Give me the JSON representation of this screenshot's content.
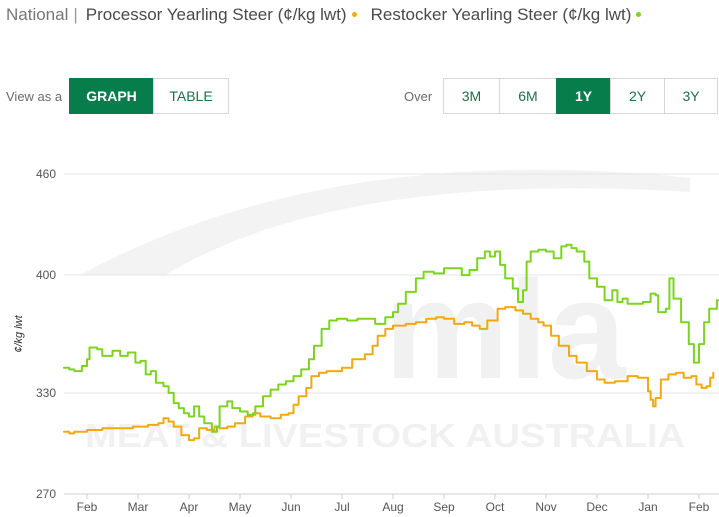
{
  "header": {
    "location": "National",
    "separator": "|",
    "series1_title": "Processor Yearling Steer (¢/kg lwt)",
    "series2_title": "Restocker Yearling Steer (¢/kg lwt)"
  },
  "view_as": {
    "label": "View as a",
    "options": [
      "GRAPH",
      "TABLE"
    ],
    "selected": "GRAPH"
  },
  "over": {
    "label": "Over",
    "options": [
      "3M",
      "6M",
      "1Y",
      "2Y",
      "3Y"
    ],
    "selected": "1Y"
  },
  "watermark": {
    "logo_text": "mla",
    "tagline": "MEAT & LIVESTOCK AUSTRALIA"
  },
  "chart_data": {
    "type": "line",
    "title": "",
    "xlabel": "",
    "ylabel": "¢/kg lwt",
    "ylim": [
      270,
      460
    ],
    "yticks": [
      270,
      330,
      400,
      460
    ],
    "xticks": [
      "Feb",
      "Mar",
      "Apr",
      "May",
      "Jun",
      "Jul",
      "Aug",
      "Sep",
      "Oct",
      "Nov",
      "Dec",
      "Jan",
      "Feb"
    ],
    "grid": true,
    "legend": "header",
    "series": [
      {
        "name": "Processor Yearling Steer (¢/kg lwt)",
        "color": "#f0a90f",
        "points": [
          [
            -0.45,
            307
          ],
          [
            -0.35,
            306
          ],
          [
            -0.25,
            307
          ],
          [
            0.0,
            308
          ],
          [
            0.3,
            309
          ],
          [
            0.6,
            309
          ],
          [
            0.9,
            310
          ],
          [
            1.1,
            310
          ],
          [
            1.2,
            311
          ],
          [
            1.4,
            312
          ],
          [
            1.5,
            315
          ],
          [
            1.6,
            313
          ],
          [
            1.7,
            310
          ],
          [
            1.85,
            305
          ],
          [
            2.0,
            302
          ],
          [
            2.1,
            303
          ],
          [
            2.2,
            309
          ],
          [
            2.35,
            308
          ],
          [
            2.5,
            310
          ],
          [
            2.6,
            309
          ],
          [
            2.75,
            310
          ],
          [
            2.9,
            312
          ],
          [
            3.1,
            316
          ],
          [
            3.25,
            318
          ],
          [
            3.4,
            316
          ],
          [
            3.6,
            315
          ],
          [
            3.8,
            317
          ],
          [
            3.95,
            318
          ],
          [
            4.05,
            323
          ],
          [
            4.15,
            328
          ],
          [
            4.3,
            333
          ],
          [
            4.4,
            340
          ],
          [
            4.55,
            342
          ],
          [
            4.7,
            343
          ],
          [
            4.85,
            343
          ],
          [
            5.0,
            345
          ],
          [
            5.2,
            350
          ],
          [
            5.45,
            353
          ],
          [
            5.6,
            358
          ],
          [
            5.7,
            364
          ],
          [
            5.85,
            368
          ],
          [
            6.0,
            370
          ],
          [
            6.25,
            371
          ],
          [
            6.45,
            372
          ],
          [
            6.65,
            374
          ],
          [
            6.85,
            375
          ],
          [
            7.0,
            374
          ],
          [
            7.2,
            371
          ],
          [
            7.4,
            372
          ],
          [
            7.55,
            370
          ],
          [
            7.7,
            368
          ],
          [
            7.85,
            373
          ],
          [
            8.05,
            380
          ],
          [
            8.2,
            381
          ],
          [
            8.4,
            379
          ],
          [
            8.55,
            377
          ],
          [
            8.7,
            374
          ],
          [
            8.85,
            372
          ],
          [
            8.95,
            370
          ],
          [
            9.1,
            364
          ],
          [
            9.25,
            358
          ],
          [
            9.45,
            352
          ],
          [
            9.6,
            348
          ],
          [
            9.8,
            343
          ],
          [
            10.0,
            338
          ],
          [
            10.15,
            336
          ],
          [
            10.35,
            337
          ],
          [
            10.6,
            340
          ],
          [
            10.8,
            339
          ],
          [
            11.0,
            331
          ],
          [
            11.05,
            326
          ],
          [
            11.1,
            322
          ],
          [
            11.15,
            327
          ],
          [
            11.25,
            338
          ],
          [
            11.4,
            341
          ],
          [
            11.55,
            342
          ],
          [
            11.7,
            339
          ],
          [
            11.85,
            340
          ],
          [
            11.95,
            335
          ],
          [
            12.05,
            333
          ],
          [
            12.15,
            334
          ],
          [
            12.22,
            339
          ],
          [
            12.28,
            342
          ]
        ]
      },
      {
        "name": "Restocker Yearling Steer (¢/kg lwt)",
        "color": "#7ed321",
        "points": [
          [
            -0.45,
            345
          ],
          [
            -0.35,
            344
          ],
          [
            -0.25,
            343
          ],
          [
            -0.1,
            346
          ],
          [
            0.0,
            350
          ],
          [
            0.05,
            357
          ],
          [
            0.2,
            356
          ],
          [
            0.3,
            352
          ],
          [
            0.5,
            355
          ],
          [
            0.65,
            352
          ],
          [
            0.8,
            354
          ],
          [
            0.95,
            348
          ],
          [
            1.05,
            349
          ],
          [
            1.15,
            341
          ],
          [
            1.25,
            343
          ],
          [
            1.35,
            336
          ],
          [
            1.5,
            334
          ],
          [
            1.6,
            330
          ],
          [
            1.7,
            324
          ],
          [
            1.8,
            321
          ],
          [
            1.9,
            318
          ],
          [
            2.0,
            316
          ],
          [
            2.1,
            322
          ],
          [
            2.2,
            316
          ],
          [
            2.3,
            312
          ],
          [
            2.45,
            307
          ],
          [
            2.55,
            310
          ],
          [
            2.6,
            322
          ],
          [
            2.75,
            325
          ],
          [
            2.85,
            321
          ],
          [
            3.0,
            319
          ],
          [
            3.15,
            317
          ],
          [
            3.3,
            322
          ],
          [
            3.45,
            328
          ],
          [
            3.6,
            332
          ],
          [
            3.75,
            335
          ],
          [
            3.9,
            337
          ],
          [
            4.05,
            340
          ],
          [
            4.2,
            344
          ],
          [
            4.35,
            350
          ],
          [
            4.45,
            358
          ],
          [
            4.6,
            368
          ],
          [
            4.75,
            373
          ],
          [
            4.9,
            374
          ],
          [
            5.1,
            373
          ],
          [
            5.3,
            374
          ],
          [
            5.5,
            374
          ],
          [
            5.65,
            371
          ],
          [
            5.85,
            375
          ],
          [
            6.0,
            378
          ],
          [
            6.1,
            383
          ],
          [
            6.25,
            390
          ],
          [
            6.45,
            398
          ],
          [
            6.6,
            402
          ],
          [
            6.8,
            401
          ],
          [
            7.0,
            404
          ],
          [
            7.2,
            404
          ],
          [
            7.35,
            400
          ],
          [
            7.5,
            403
          ],
          [
            7.65,
            410
          ],
          [
            7.8,
            414
          ],
          [
            7.9,
            411
          ],
          [
            8.0,
            414
          ],
          [
            8.1,
            406
          ],
          [
            8.2,
            398
          ],
          [
            8.35,
            392
          ],
          [
            8.45,
            384
          ],
          [
            8.55,
            391
          ],
          [
            8.62,
            408
          ],
          [
            8.7,
            414
          ],
          [
            8.85,
            415
          ],
          [
            9.0,
            414
          ],
          [
            9.15,
            410
          ],
          [
            9.3,
            417
          ],
          [
            9.4,
            418
          ],
          [
            9.5,
            416
          ],
          [
            9.6,
            414
          ],
          [
            9.75,
            408
          ],
          [
            9.85,
            398
          ],
          [
            10.0,
            393
          ],
          [
            10.15,
            385
          ],
          [
            10.3,
            391
          ],
          [
            10.4,
            384
          ],
          [
            10.5,
            386
          ],
          [
            10.6,
            383
          ],
          [
            10.75,
            383
          ],
          [
            10.9,
            384
          ],
          [
            11.05,
            389
          ],
          [
            11.15,
            388
          ],
          [
            11.2,
            378
          ],
          [
            11.35,
            380
          ],
          [
            11.42,
            398
          ],
          [
            11.5,
            386
          ],
          [
            11.65,
            372
          ],
          [
            11.8,
            359
          ],
          [
            11.9,
            348
          ],
          [
            12.0,
            359
          ],
          [
            12.1,
            372
          ],
          [
            12.2,
            380
          ],
          [
            12.35,
            385
          ],
          [
            12.5,
            392
          ],
          [
            12.6,
            395
          ],
          [
            12.65,
            396
          ]
        ]
      }
    ]
  }
}
